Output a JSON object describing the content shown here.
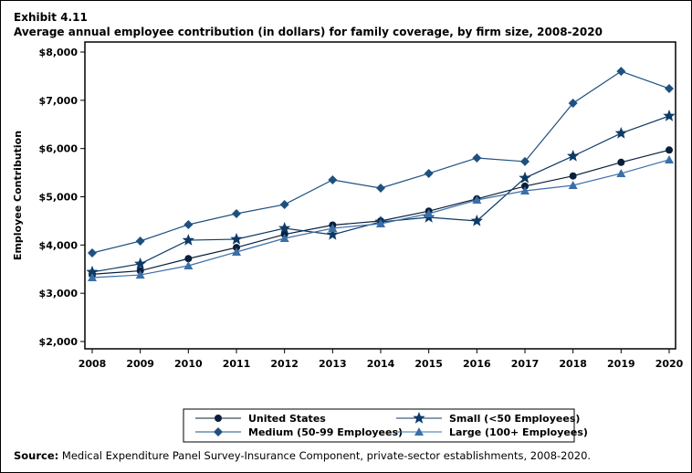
{
  "exhibit": "Exhibit 4.11",
  "source_label": "Source:",
  "source_text": " Medical Expenditure Panel Survey-Insurance Component, private-sector establishments, 2008-2020.",
  "chart_data": {
    "type": "line",
    "title": "Average annual employee contribution (in dollars) for family coverage, by firm size, 2008-2020",
    "xlabel": "",
    "ylabel": "Employee Contribution",
    "ylim": [
      2000,
      8000
    ],
    "yticks": [
      2000,
      3000,
      4000,
      5000,
      6000,
      7000,
      8000
    ],
    "ytick_labels": [
      "$2,000",
      "$3,000",
      "$4,000",
      "$5,000",
      "$6,000",
      "$7,000",
      "$8,000"
    ],
    "x": [
      2008,
      2009,
      2010,
      2011,
      2012,
      2013,
      2014,
      2015,
      2016,
      2017,
      2018,
      2019,
      2020
    ],
    "legend_position": "bottom",
    "series": [
      {
        "name": "United States",
        "marker": "circle",
        "color": "#0b1f3a",
        "values": [
          3394,
          3466,
          3718,
          3948,
          4221,
          4413,
          4499,
          4703,
          4957,
          5219,
          5431,
          5714,
          5969
        ]
      },
      {
        "name": "Small (<50 Employees)",
        "marker": "star",
        "color": "#0d3a66",
        "values": [
          3440,
          3610,
          4100,
          4120,
          4347,
          4215,
          4480,
          4574,
          4499,
          5390,
          5843,
          6316,
          6675
        ]
      },
      {
        "name": "Medium (50-99 Employees)",
        "marker": "diamond",
        "color": "#1f5080",
        "values": [
          3836,
          4082,
          4423,
          4650,
          4840,
          5350,
          5180,
          5483,
          5805,
          5730,
          6940,
          7600,
          7243
        ]
      },
      {
        "name": "Large (100+ Employees)",
        "marker": "triangle",
        "color": "#3a6fa8",
        "values": [
          3325,
          3380,
          3571,
          3855,
          4139,
          4347,
          4442,
          4650,
          4934,
          5123,
          5237,
          5483,
          5767
        ]
      }
    ]
  }
}
